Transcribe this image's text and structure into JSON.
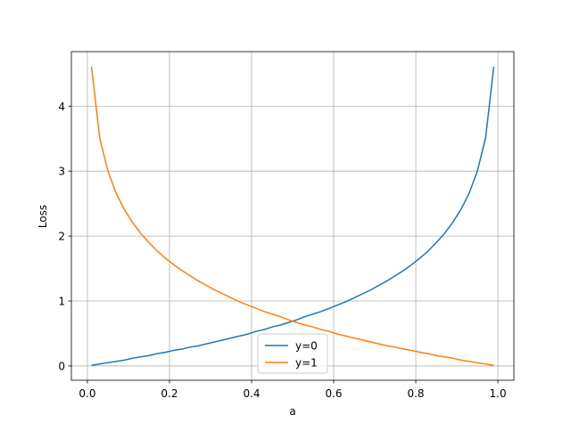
{
  "chart_data": {
    "type": "line",
    "x_label": "a",
    "y_label": "Loss",
    "x": [
      0.01,
      0.03,
      0.05,
      0.07,
      0.09,
      0.11,
      0.13,
      0.15,
      0.17,
      0.19,
      0.21,
      0.23,
      0.25,
      0.27,
      0.29,
      0.31,
      0.33,
      0.35,
      0.37,
      0.39,
      0.41,
      0.43,
      0.45,
      0.47,
      0.49,
      0.51,
      0.53,
      0.55,
      0.57,
      0.59,
      0.61,
      0.63,
      0.65,
      0.67,
      0.69,
      0.71,
      0.73,
      0.75,
      0.77,
      0.79,
      0.81,
      0.83,
      0.85,
      0.87,
      0.89,
      0.91,
      0.93,
      0.95,
      0.97,
      0.99
    ],
    "series": [
      {
        "name": "y=0",
        "color": "#1f77b4",
        "values": [
          0.01,
          0.03,
          0.05,
          0.07,
          0.09,
          0.12,
          0.14,
          0.16,
          0.19,
          0.21,
          0.24,
          0.26,
          0.29,
          0.31,
          0.34,
          0.37,
          0.4,
          0.43,
          0.46,
          0.49,
          0.53,
          0.56,
          0.6,
          0.63,
          0.67,
          0.71,
          0.76,
          0.8,
          0.84,
          0.89,
          0.94,
          0.99,
          1.05,
          1.11,
          1.17,
          1.24,
          1.31,
          1.39,
          1.47,
          1.56,
          1.66,
          1.77,
          1.9,
          2.04,
          2.21,
          2.41,
          2.66,
          3.0,
          3.51,
          4.61
        ]
      },
      {
        "name": "y=1",
        "color": "#ff7f0e",
        "values": [
          4.61,
          3.51,
          3.0,
          2.66,
          2.41,
          2.21,
          2.04,
          1.9,
          1.77,
          1.66,
          1.56,
          1.47,
          1.39,
          1.31,
          1.24,
          1.17,
          1.11,
          1.05,
          0.99,
          0.94,
          0.89,
          0.84,
          0.8,
          0.76,
          0.71,
          0.67,
          0.63,
          0.6,
          0.56,
          0.53,
          0.49,
          0.46,
          0.43,
          0.4,
          0.37,
          0.34,
          0.31,
          0.29,
          0.26,
          0.24,
          0.21,
          0.19,
          0.16,
          0.14,
          0.12,
          0.09,
          0.07,
          0.05,
          0.03,
          0.01
        ]
      }
    ],
    "xlim": [
      -0.039,
      1.039
    ],
    "ylim": [
      -0.22,
      4.84
    ],
    "xticks": [
      {
        "value": 0,
        "label": "0.0"
      },
      0.2,
      0.4,
      0.6,
      0.8,
      {
        "value": 1,
        "label": "1.0"
      }
    ],
    "yticks": [
      0,
      1,
      2,
      3,
      4
    ],
    "grid": true,
    "legend": "lower center"
  }
}
